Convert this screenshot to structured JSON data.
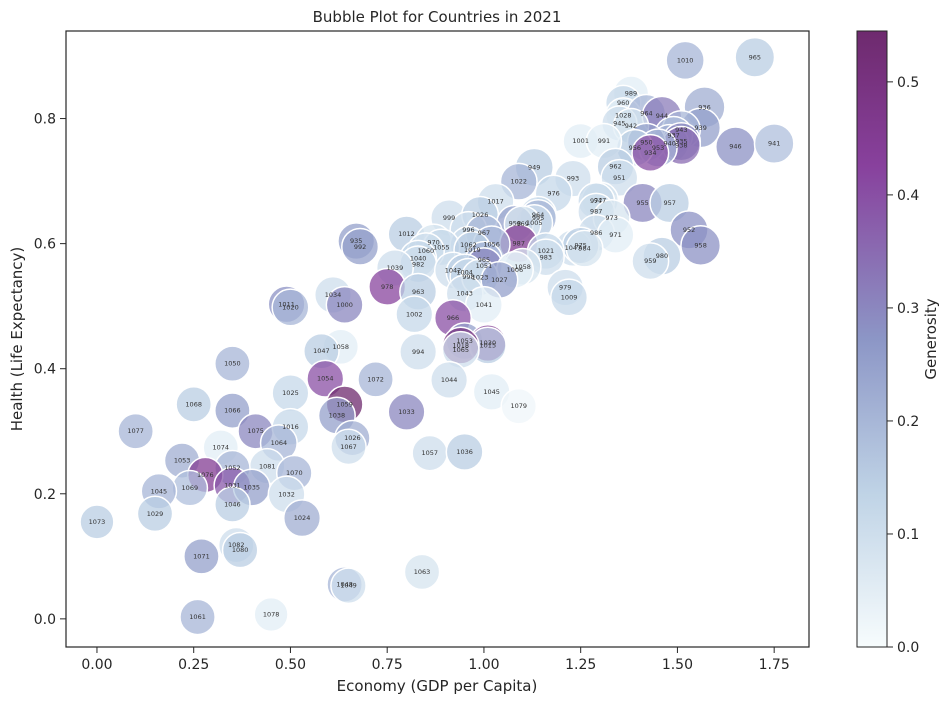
{
  "chart_data": {
    "type": "scatter",
    "title": "Bubble Plot for Countries in 2021",
    "xlabel": "Economy (GDP per Capita)",
    "ylabel": "Health (Life Expectancy)",
    "xlim": [
      -0.08,
      1.84
    ],
    "ylim": [
      -0.045,
      0.94
    ],
    "x_ticks": [
      {
        "value": 0.0,
        "label": "0.00"
      },
      {
        "value": 0.25,
        "label": "0.25"
      },
      {
        "value": 0.5,
        "label": "0.50"
      },
      {
        "value": 0.75,
        "label": "0.75"
      },
      {
        "value": 1.0,
        "label": "1.00"
      },
      {
        "value": 1.25,
        "label": "1.25"
      },
      {
        "value": 1.5,
        "label": "1.50"
      },
      {
        "value": 1.75,
        "label": "1.75"
      }
    ],
    "y_ticks": [
      {
        "value": 0.0,
        "label": "0.0"
      },
      {
        "value": 0.2,
        "label": "0.2"
      },
      {
        "value": 0.4,
        "label": "0.4"
      },
      {
        "value": 0.6,
        "label": "0.6"
      },
      {
        "value": 0.8,
        "label": "0.8"
      }
    ],
    "grid": false,
    "colorbar": {
      "label": "Generosity",
      "range": [
        0.0,
        0.545
      ],
      "ticks": [
        {
          "value": 0.0,
          "label": "0.0"
        },
        {
          "value": 0.1,
          "label": "0.1"
        },
        {
          "value": 0.2,
          "label": "0.2"
        },
        {
          "value": 0.3,
          "label": "0.3"
        },
        {
          "value": 0.4,
          "label": "0.4"
        },
        {
          "value": 0.5,
          "label": "0.5"
        }
      ],
      "colormap": [
        "#f7fcfd",
        "#bfd3e6",
        "#8c96c6",
        "#88419d",
        "#6e2a6e"
      ]
    },
    "points": [
      {
        "label": "1010",
        "x": 1.52,
        "y": 0.893,
        "size": 0.5,
        "g": 0.2
      },
      {
        "label": "965",
        "x": 1.7,
        "y": 0.898,
        "size": 0.55,
        "g": 0.15
      },
      {
        "label": "989",
        "x": 1.38,
        "y": 0.84,
        "size": 0.4,
        "g": 0.05
      },
      {
        "label": "960",
        "x": 1.36,
        "y": 0.825,
        "size": 0.4,
        "g": 0.12
      },
      {
        "label": "936",
        "x": 1.57,
        "y": 0.818,
        "size": 0.6,
        "g": 0.22
      },
      {
        "label": "1028",
        "x": 1.36,
        "y": 0.805,
        "size": 0.4,
        "g": 0.05
      },
      {
        "label": "964",
        "x": 1.42,
        "y": 0.808,
        "size": 0.5,
        "g": 0.2
      },
      {
        "label": "944",
        "x": 1.46,
        "y": 0.804,
        "size": 0.55,
        "g": 0.32
      },
      {
        "label": "945",
        "x": 1.35,
        "y": 0.792,
        "size": 0.4,
        "g": 0.1
      },
      {
        "label": "942",
        "x": 1.38,
        "y": 0.788,
        "size": 0.4,
        "g": 0.08
      },
      {
        "label": "939",
        "x": 1.56,
        "y": 0.785,
        "size": 0.55,
        "g": 0.25
      },
      {
        "label": "943",
        "x": 1.51,
        "y": 0.782,
        "size": 0.5,
        "g": 0.2
      },
      {
        "label": "937",
        "x": 1.49,
        "y": 0.773,
        "size": 0.5,
        "g": 0.18
      },
      {
        "label": "940",
        "x": 1.48,
        "y": 0.76,
        "size": 0.5,
        "g": 0.22
      },
      {
        "label": "935",
        "x": 1.51,
        "y": 0.763,
        "size": 0.5,
        "g": 0.3
      },
      {
        "label": "938",
        "x": 1.51,
        "y": 0.757,
        "size": 0.5,
        "g": 0.35
      },
      {
        "label": "946",
        "x": 1.65,
        "y": 0.755,
        "size": 0.55,
        "g": 0.28
      },
      {
        "label": "941",
        "x": 1.75,
        "y": 0.76,
        "size": 0.55,
        "g": 0.18
      },
      {
        "label": "950",
        "x": 1.42,
        "y": 0.762,
        "size": 0.5,
        "g": 0.25
      },
      {
        "label": "953",
        "x": 1.45,
        "y": 0.753,
        "size": 0.5,
        "g": 0.2
      },
      {
        "label": "956",
        "x": 1.39,
        "y": 0.753,
        "size": 0.45,
        "g": 0.15
      },
      {
        "label": "934",
        "x": 1.43,
        "y": 0.745,
        "size": 0.45,
        "g": 0.4
      },
      {
        "label": "1001",
        "x": 1.25,
        "y": 0.764,
        "size": 0.4,
        "g": 0.05
      },
      {
        "label": "991",
        "x": 1.31,
        "y": 0.764,
        "size": 0.4,
        "g": 0.05
      },
      {
        "label": "962",
        "x": 1.34,
        "y": 0.723,
        "size": 0.45,
        "g": 0.15
      },
      {
        "label": "951",
        "x": 1.35,
        "y": 0.705,
        "size": 0.45,
        "g": 0.1
      },
      {
        "label": "949",
        "x": 1.13,
        "y": 0.722,
        "size": 0.5,
        "g": 0.15
      },
      {
        "label": "993",
        "x": 1.23,
        "y": 0.704,
        "size": 0.45,
        "g": 0.1
      },
      {
        "label": "1022",
        "x": 1.09,
        "y": 0.699,
        "size": 0.45,
        "g": 0.2
      },
      {
        "label": "976",
        "x": 1.18,
        "y": 0.68,
        "size": 0.45,
        "g": 0.12
      },
      {
        "label": "955",
        "x": 1.41,
        "y": 0.665,
        "size": 0.55,
        "g": 0.3
      },
      {
        "label": "957",
        "x": 1.48,
        "y": 0.665,
        "size": 0.55,
        "g": 0.15
      },
      {
        "label": "947",
        "x": 1.3,
        "y": 0.669,
        "size": 0.45,
        "g": 0.08
      },
      {
        "label": "977",
        "x": 1.29,
        "y": 0.668,
        "size": 0.45,
        "g": 0.12
      },
      {
        "label": "987",
        "x": 1.29,
        "y": 0.651,
        "size": 0.45,
        "g": 0.1
      },
      {
        "label": "1017",
        "x": 1.03,
        "y": 0.667,
        "size": 0.45,
        "g": 0.1
      },
      {
        "label": "973",
        "x": 1.33,
        "y": 0.641,
        "size": 0.45,
        "g": 0.08
      },
      {
        "label": "964",
        "x": 1.14,
        "y": 0.646,
        "size": 0.45,
        "g": 0.12
      },
      {
        "label": "995",
        "x": 1.14,
        "y": 0.641,
        "size": 0.45,
        "g": 0.2
      },
      {
        "label": "1005",
        "x": 1.13,
        "y": 0.633,
        "size": 0.45,
        "g": 0.1
      },
      {
        "label": "999",
        "x": 0.91,
        "y": 0.641,
        "size": 0.45,
        "g": 0.1
      },
      {
        "label": "1026",
        "x": 0.99,
        "y": 0.646,
        "size": 0.45,
        "g": 0.15
      },
      {
        "label": "958",
        "x": 1.08,
        "y": 0.632,
        "size": 0.45,
        "g": 0.25
      },
      {
        "label": "969",
        "x": 1.1,
        "y": 0.631,
        "size": 0.45,
        "g": 0.08
      },
      {
        "label": "952",
        "x": 1.53,
        "y": 0.622,
        "size": 0.5,
        "g": 0.28
      },
      {
        "label": "996",
        "x": 0.96,
        "y": 0.622,
        "size": 0.45,
        "g": 0.1
      },
      {
        "label": "967",
        "x": 1.0,
        "y": 0.617,
        "size": 0.45,
        "g": 0.2
      },
      {
        "label": "986",
        "x": 1.29,
        "y": 0.617,
        "size": 0.45,
        "g": 0.1
      },
      {
        "label": "971",
        "x": 1.34,
        "y": 0.614,
        "size": 0.45,
        "g": 0.05
      },
      {
        "label": "1012",
        "x": 0.8,
        "y": 0.615,
        "size": 0.45,
        "g": 0.15
      },
      {
        "label": "935",
        "x": 0.67,
        "y": 0.604,
        "size": 0.45,
        "g": 0.25
      },
      {
        "label": "992",
        "x": 0.68,
        "y": 0.595,
        "size": 0.45,
        "g": 0.25
      },
      {
        "label": "987",
        "x": 1.09,
        "y": 0.6,
        "size": 0.5,
        "g": 0.45
      },
      {
        "label": "970",
        "x": 0.87,
        "y": 0.602,
        "size": 0.45,
        "g": 0.08
      },
      {
        "label": "1062",
        "x": 0.96,
        "y": 0.598,
        "size": 0.45,
        "g": 0.1
      },
      {
        "label": "1056",
        "x": 1.02,
        "y": 0.599,
        "size": 0.45,
        "g": 0.2
      },
      {
        "label": "1055",
        "x": 0.89,
        "y": 0.594,
        "size": 0.45,
        "g": 0.12
      },
      {
        "label": "1047",
        "x": 1.23,
        "y": 0.593,
        "size": 0.45,
        "g": 0.1
      },
      {
        "label": "975",
        "x": 1.25,
        "y": 0.597,
        "size": 0.45,
        "g": 0.15
      },
      {
        "label": "984",
        "x": 1.26,
        "y": 0.592,
        "size": 0.45,
        "g": 0.08
      },
      {
        "label": "1019",
        "x": 0.97,
        "y": 0.59,
        "size": 0.45,
        "g": 0.15
      },
      {
        "label": "1060",
        "x": 0.85,
        "y": 0.588,
        "size": 0.45,
        "g": 0.1
      },
      {
        "label": "958",
        "x": 1.56,
        "y": 0.597,
        "size": 0.55,
        "g": 0.28
      },
      {
        "label": "1021",
        "x": 1.16,
        "y": 0.588,
        "size": 0.45,
        "g": 0.12
      },
      {
        "label": "983",
        "x": 1.16,
        "y": 0.578,
        "size": 0.45,
        "g": 0.1
      },
      {
        "label": "980",
        "x": 1.46,
        "y": 0.58,
        "size": 0.5,
        "g": 0.15
      },
      {
        "label": "959",
        "x": 1.43,
        "y": 0.572,
        "size": 0.45,
        "g": 0.1
      },
      {
        "label": "965",
        "x": 1.0,
        "y": 0.574,
        "size": 0.45,
        "g": 0.2
      },
      {
        "label": "1040",
        "x": 0.83,
        "y": 0.576,
        "size": 0.45,
        "g": 0.12
      },
      {
        "label": "982",
        "x": 0.83,
        "y": 0.567,
        "size": 0.45,
        "g": 0.1
      },
      {
        "label": "1051",
        "x": 1.0,
        "y": 0.564,
        "size": 0.45,
        "g": 0.3
      },
      {
        "label": "1058",
        "x": 1.1,
        "y": 0.563,
        "size": 0.45,
        "g": 0.08
      },
      {
        "label": "1039",
        "x": 0.77,
        "y": 0.561,
        "size": 0.45,
        "g": 0.1
      },
      {
        "label": "1006",
        "x": 1.08,
        "y": 0.558,
        "size": 0.45,
        "g": 0.05
      },
      {
        "label": "1042",
        "x": 0.92,
        "y": 0.557,
        "size": 0.45,
        "g": 0.1
      },
      {
        "label": "1004",
        "x": 0.95,
        "y": 0.554,
        "size": 0.45,
        "g": 0.15
      },
      {
        "label": "998",
        "x": 0.96,
        "y": 0.547,
        "size": 0.45,
        "g": 0.12
      },
      {
        "label": "1023",
        "x": 0.99,
        "y": 0.546,
        "size": 0.45,
        "g": 0.1
      },
      {
        "label": "1027",
        "x": 1.04,
        "y": 0.542,
        "size": 0.45,
        "g": 0.25
      },
      {
        "label": "978",
        "x": 0.75,
        "y": 0.531,
        "size": 0.45,
        "g": 0.42
      },
      {
        "label": "979",
        "x": 1.21,
        "y": 0.53,
        "size": 0.45,
        "g": 0.1
      },
      {
        "label": "963",
        "x": 0.83,
        "y": 0.523,
        "size": 0.45,
        "g": 0.15
      },
      {
        "label": "1043",
        "x": 0.95,
        "y": 0.52,
        "size": 0.45,
        "g": 0.1
      },
      {
        "label": "1009",
        "x": 1.22,
        "y": 0.514,
        "size": 0.45,
        "g": 0.12
      },
      {
        "label": "1034",
        "x": 0.61,
        "y": 0.518,
        "size": 0.45,
        "g": 0.1
      },
      {
        "label": "1000",
        "x": 0.64,
        "y": 0.502,
        "size": 0.45,
        "g": 0.3
      },
      {
        "label": "1041",
        "x": 1.0,
        "y": 0.502,
        "size": 0.45,
        "g": 0.05
      },
      {
        "label": "1011",
        "x": 0.49,
        "y": 0.503,
        "size": 0.45,
        "g": 0.28
      },
      {
        "label": "1020",
        "x": 0.5,
        "y": 0.498,
        "size": 0.45,
        "g": 0.2
      },
      {
        "label": "1002",
        "x": 0.82,
        "y": 0.487,
        "size": 0.45,
        "g": 0.12
      },
      {
        "label": "966",
        "x": 0.92,
        "y": 0.481,
        "size": 0.45,
        "g": 0.4
      },
      {
        "label": "1053",
        "x": 0.95,
        "y": 0.444,
        "size": 0.45,
        "g": 0.25
      },
      {
        "label": "1030",
        "x": 1.01,
        "y": 0.441,
        "size": 0.45,
        "g": 0.45
      },
      {
        "label": "1015",
        "x": 1.01,
        "y": 0.437,
        "size": 0.45,
        "g": 0.15
      },
      {
        "label": "1018",
        "x": 0.94,
        "y": 0.437,
        "size": 0.45,
        "g": 0.5
      },
      {
        "label": "1065",
        "x": 0.94,
        "y": 0.43,
        "size": 0.45,
        "g": 0.1
      },
      {
        "label": "1058",
        "x": 0.63,
        "y": 0.435,
        "size": 0.4,
        "g": 0.05
      },
      {
        "label": "1047",
        "x": 0.58,
        "y": 0.428,
        "size": 0.4,
        "g": 0.15
      },
      {
        "label": "994",
        "x": 0.83,
        "y": 0.427,
        "size": 0.45,
        "g": 0.1
      },
      {
        "label": "1050",
        "x": 0.35,
        "y": 0.408,
        "size": 0.4,
        "g": 0.2
      },
      {
        "label": "1054",
        "x": 0.59,
        "y": 0.384,
        "size": 0.45,
        "g": 0.4
      },
      {
        "label": "1072",
        "x": 0.72,
        "y": 0.383,
        "size": 0.4,
        "g": 0.2
      },
      {
        "label": "1044",
        "x": 0.91,
        "y": 0.382,
        "size": 0.45,
        "g": 0.1
      },
      {
        "label": "1025",
        "x": 0.5,
        "y": 0.361,
        "size": 0.45,
        "g": 0.12
      },
      {
        "label": "1045",
        "x": 1.02,
        "y": 0.363,
        "size": 0.45,
        "g": 0.05
      },
      {
        "label": "1068",
        "x": 0.25,
        "y": 0.343,
        "size": 0.4,
        "g": 0.15
      },
      {
        "label": "1059",
        "x": 0.64,
        "y": 0.343,
        "size": 0.45,
        "g": 0.55
      },
      {
        "label": "1079",
        "x": 1.09,
        "y": 0.34,
        "size": 0.4,
        "g": 0.02
      },
      {
        "label": "1066",
        "x": 0.35,
        "y": 0.333,
        "size": 0.4,
        "g": 0.25
      },
      {
        "label": "1033",
        "x": 0.8,
        "y": 0.331,
        "size": 0.45,
        "g": 0.3
      },
      {
        "label": "1038",
        "x": 0.62,
        "y": 0.325,
        "size": 0.45,
        "g": 0.25
      },
      {
        "label": "1077",
        "x": 0.1,
        "y": 0.3,
        "size": 0.4,
        "g": 0.2
      },
      {
        "label": "1075",
        "x": 0.41,
        "y": 0.3,
        "size": 0.4,
        "g": 0.3
      },
      {
        "label": "1016",
        "x": 0.5,
        "y": 0.307,
        "size": 0.45,
        "g": 0.12
      },
      {
        "label": "1026",
        "x": 0.66,
        "y": 0.289,
        "size": 0.4,
        "g": 0.22
      },
      {
        "label": "1064",
        "x": 0.47,
        "y": 0.281,
        "size": 0.45,
        "g": 0.2
      },
      {
        "label": "1067",
        "x": 0.65,
        "y": 0.275,
        "size": 0.4,
        "g": 0.1
      },
      {
        "label": "1074",
        "x": 0.32,
        "y": 0.274,
        "size": 0.4,
        "g": 0.05
      },
      {
        "label": "1057",
        "x": 0.86,
        "y": 0.265,
        "size": 0.4,
        "g": 0.1
      },
      {
        "label": "1036",
        "x": 0.95,
        "y": 0.267,
        "size": 0.45,
        "g": 0.15
      },
      {
        "label": "1053",
        "x": 0.22,
        "y": 0.253,
        "size": 0.4,
        "g": 0.22
      },
      {
        "label": "1081",
        "x": 0.44,
        "y": 0.244,
        "size": 0.4,
        "g": 0.1
      },
      {
        "label": "1052",
        "x": 0.35,
        "y": 0.241,
        "size": 0.4,
        "g": 0.2
      },
      {
        "label": "1070",
        "x": 0.51,
        "y": 0.233,
        "size": 0.4,
        "g": 0.2
      },
      {
        "label": "1076",
        "x": 0.28,
        "y": 0.23,
        "size": 0.4,
        "g": 0.45
      },
      {
        "label": "1031",
        "x": 0.35,
        "y": 0.213,
        "size": 0.45,
        "g": 0.38
      },
      {
        "label": "1035",
        "x": 0.4,
        "y": 0.21,
        "size": 0.45,
        "g": 0.25
      },
      {
        "label": "1069",
        "x": 0.24,
        "y": 0.209,
        "size": 0.4,
        "g": 0.18
      },
      {
        "label": "1045",
        "x": 0.16,
        "y": 0.204,
        "size": 0.4,
        "g": 0.2
      },
      {
        "label": "1032",
        "x": 0.49,
        "y": 0.199,
        "size": 0.45,
        "g": 0.1
      },
      {
        "label": "1046",
        "x": 0.35,
        "y": 0.183,
        "size": 0.4,
        "g": 0.15
      },
      {
        "label": "1029",
        "x": 0.15,
        "y": 0.168,
        "size": 0.4,
        "g": 0.15
      },
      {
        "label": "1024",
        "x": 0.53,
        "y": 0.161,
        "size": 0.45,
        "g": 0.22
      },
      {
        "label": "1073",
        "x": 0.0,
        "y": 0.155,
        "size": 0.35,
        "g": 0.15
      },
      {
        "label": "1082",
        "x": 0.36,
        "y": 0.118,
        "size": 0.4,
        "g": 0.1
      },
      {
        "label": "1080",
        "x": 0.37,
        "y": 0.11,
        "size": 0.4,
        "g": 0.15
      },
      {
        "label": "1071",
        "x": 0.27,
        "y": 0.1,
        "size": 0.4,
        "g": 0.25
      },
      {
        "label": "1063",
        "x": 0.84,
        "y": 0.075,
        "size": 0.4,
        "g": 0.08
      },
      {
        "label": "1048",
        "x": 0.64,
        "y": 0.055,
        "size": 0.4,
        "g": 0.2
      },
      {
        "label": "1049",
        "x": 0.65,
        "y": 0.053,
        "size": 0.4,
        "g": 0.1
      },
      {
        "label": "1078",
        "x": 0.45,
        "y": 0.007,
        "size": 0.35,
        "g": 0.05
      },
      {
        "label": "1061",
        "x": 0.26,
        "y": 0.003,
        "size": 0.4,
        "g": 0.2
      }
    ]
  }
}
